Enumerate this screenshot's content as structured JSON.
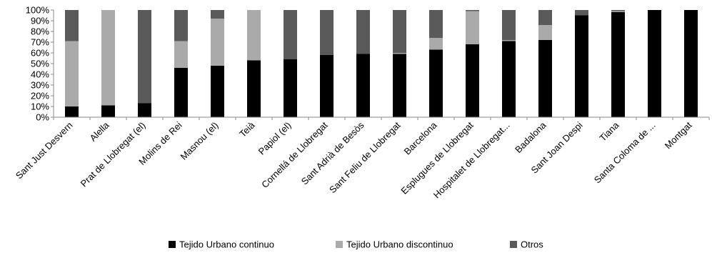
{
  "chart_data": {
    "type": "bar",
    "stacked": true,
    "percent": true,
    "categories": [
      "Sant Just Desvern",
      "Alella",
      "Prat de Llobregat (el)",
      "Molins de Rei",
      "Masnou (el)",
      "Teià",
      "Papiol (el)",
      "Cornellá de Llobregat",
      "Sant Adrià de Besòs",
      "Sant Feliu de Llobregat",
      "Barcelona",
      "Esplugues de Llobregat",
      "Hospitalet de Llobregat...",
      "Badalona",
      "Sant Joan Despi",
      "Tiana",
      "Santa Coloma de ...",
      "Montgat"
    ],
    "series": [
      {
        "name": "Tejido Urbano continuo",
        "color": "#000000",
        "values": [
          10,
          11,
          13,
          46,
          48,
          53,
          54,
          58,
          59,
          59,
          63,
          68,
          71,
          72,
          95,
          98,
          100,
          100
        ]
      },
      {
        "name": "Tejido Urbano discontinuo",
        "color": "#aaaaaa",
        "values": [
          61,
          89,
          0,
          25,
          44,
          47,
          0,
          0,
          0,
          1,
          11,
          31,
          1,
          14,
          0,
          1,
          0,
          0
        ]
      },
      {
        "name": "Otros",
        "color": "#5a5a5a",
        "values": [
          29,
          0,
          87,
          29,
          8,
          0,
          46,
          42,
          41,
          40,
          26,
          1,
          28,
          14,
          5,
          1,
          0,
          0
        ]
      }
    ],
    "ylim": [
      0,
      100
    ],
    "yticks": [
      "0%",
      "10%",
      "20%",
      "30%",
      "40%",
      "50%",
      "60%",
      "70%",
      "80%",
      "90%",
      "100%"
    ],
    "legend_position": "bottom",
    "grid": false
  }
}
